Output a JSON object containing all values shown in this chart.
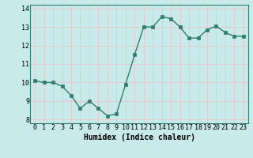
{
  "x": [
    0,
    1,
    2,
    3,
    4,
    5,
    6,
    7,
    8,
    9,
    10,
    11,
    12,
    13,
    14,
    15,
    16,
    17,
    18,
    19,
    20,
    21,
    22,
    23
  ],
  "y": [
    10.1,
    10.0,
    10.0,
    9.8,
    9.3,
    8.6,
    9.0,
    8.6,
    8.2,
    8.3,
    9.9,
    11.5,
    13.0,
    13.0,
    13.55,
    13.45,
    13.0,
    12.4,
    12.4,
    12.85,
    13.05,
    12.7,
    12.5,
    12.5
  ],
  "line_color": "#2e7d6e",
  "marker_color": "#2e7d6e",
  "bg_color": "#c8eaea",
  "grid_color": "#e8c8c8",
  "xlabel": "Humidex (Indice chaleur)",
  "xlabel_fontsize": 7,
  "xlim": [
    -0.5,
    23.5
  ],
  "ylim": [
    7.8,
    14.2
  ],
  "yticks": [
    8,
    9,
    10,
    11,
    12,
    13,
    14
  ],
  "xticks": [
    0,
    1,
    2,
    3,
    4,
    5,
    6,
    7,
    8,
    9,
    10,
    11,
    12,
    13,
    14,
    15,
    16,
    17,
    18,
    19,
    20,
    21,
    22,
    23
  ],
  "tick_fontsize": 6,
  "linewidth": 1.0,
  "markersize": 2.5
}
